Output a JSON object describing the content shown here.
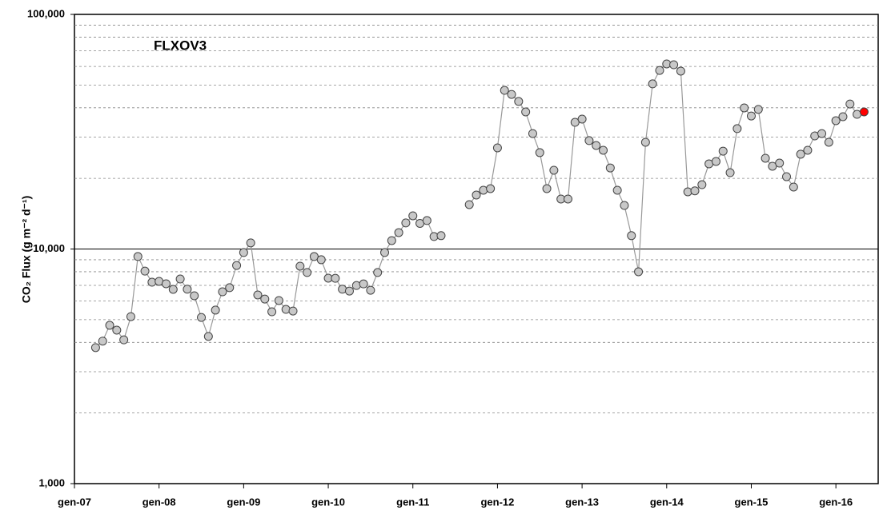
{
  "chart_data": {
    "type": "scatter_line",
    "title": "FLXOV3",
    "ylabel": "CO₂ Flux (g m⁻² d⁻¹)",
    "x": [
      "2007-04",
      "2007-05",
      "2007-06",
      "2007-07",
      "2007-08",
      "2007-09",
      "2007-10",
      "2007-11",
      "2007-12",
      "2008-01",
      "2008-02",
      "2008-03",
      "2008-04",
      "2008-05",
      "2008-06",
      "2008-07",
      "2008-08",
      "2008-09",
      "2008-10",
      "2008-11",
      "2008-12",
      "2009-01",
      "2009-02",
      "2009-03",
      "2009-04",
      "2009-05",
      "2009-06",
      "2009-07",
      "2009-08",
      "2009-09",
      "2009-10",
      "2009-11",
      "2009-12",
      "2010-01",
      "2010-02",
      "2010-03",
      "2010-04",
      "2010-05",
      "2010-06",
      "2010-07",
      "2010-08",
      "2010-09",
      "2010-10",
      "2010-11",
      "2010-12",
      "2011-01",
      "2011-02",
      "2011-03",
      "2011-04",
      "2011-05",
      "2011-07",
      "2011-09",
      "2011-10",
      "2011-11",
      "2011-12",
      "2012-01",
      "2012-02",
      "2012-03",
      "2012-04",
      "2012-05",
      "2012-06",
      "2012-07",
      "2012-08",
      "2012-09",
      "2012-10",
      "2012-11",
      "2012-12",
      "2013-01",
      "2013-02",
      "2013-03",
      "2013-04",
      "2013-05",
      "2013-06",
      "2013-07",
      "2013-08",
      "2013-09",
      "2013-10",
      "2013-11",
      "2013-12",
      "2014-01",
      "2014-02",
      "2014-03",
      "2014-04",
      "2014-05",
      "2014-06",
      "2014-07",
      "2014-08",
      "2014-09",
      "2014-10",
      "2014-11",
      "2014-12",
      "2015-01",
      "2015-02",
      "2015-03",
      "2015-04",
      "2015-05",
      "2015-06",
      "2015-07",
      "2015-08",
      "2015-09",
      "2015-10",
      "2015-11",
      "2015-12",
      "2016-01",
      "2016-02",
      "2016-03",
      "2016-04"
    ],
    "series": [
      {
        "color": "#c8c8c8",
        "line_color": "#999999",
        "values": [
          3800,
          4050,
          4730,
          4510,
          4100,
          5150,
          9290,
          8050,
          7220,
          7280,
          7110,
          6730,
          7450,
          6740,
          6320,
          5110,
          4240,
          5490,
          6570,
          6840,
          8510,
          9660,
          10620,
          6370,
          6120,
          5400,
          6030,
          5530,
          5440,
          8450,
          7940,
          9290,
          9000,
          7510,
          7500,
          6740,
          6620,
          6990,
          7100,
          6670,
          7940,
          9660,
          10860,
          11750,
          12920,
          13850,
          12860,
          13220,
          11300,
          11400,
          null,
          15460,
          16990,
          17800,
          18090,
          26980,
          47450,
          45600,
          42550,
          38400,
          31050,
          25750,
          18090,
          21660,
          16330,
          16330,
          34670,
          35790,
          28970,
          27620,
          26360,
          22160,
          17800,
          15330,
          11400,
          8000,
          28510,
          50580,
          57700,
          61500,
          61000,
          57300,
          17530,
          17700,
          18800,
          23070,
          23620,
          26130,
          21150,
          32590,
          39940,
          36900,
          39360,
          24370,
          22530,
          23240,
          20330,
          18370,
          25350,
          26360,
          30340,
          31050,
          28510,
          35240,
          36640,
          41500,
          37500
        ]
      }
    ],
    "highlight": {
      "x": "2016-05",
      "value": 38400,
      "color": "#ff0000"
    },
    "xlim": [
      "2007-01",
      "2016-07"
    ],
    "xticks": [
      {
        "value": "2007-01",
        "label": "gen-07"
      },
      {
        "value": "2008-01",
        "label": "gen-08"
      },
      {
        "value": "2009-01",
        "label": "gen-09"
      },
      {
        "value": "2010-01",
        "label": "gen-10"
      },
      {
        "value": "2011-01",
        "label": "gen-11"
      },
      {
        "value": "2012-01",
        "label": "gen-12"
      },
      {
        "value": "2013-01",
        "label": "gen-13"
      },
      {
        "value": "2014-01",
        "label": "gen-14"
      },
      {
        "value": "2015-01",
        "label": "gen-15"
      },
      {
        "value": "2016-01",
        "label": "gen-16"
      }
    ],
    "ylim": [
      1000,
      100000
    ],
    "log_y": true,
    "minor_grid": true,
    "yticks": [
      {
        "value": 1000,
        "label": "1,000"
      },
      {
        "value": 10000,
        "label": "10,000"
      },
      {
        "value": 100000,
        "label": "100,000"
      }
    ]
  }
}
